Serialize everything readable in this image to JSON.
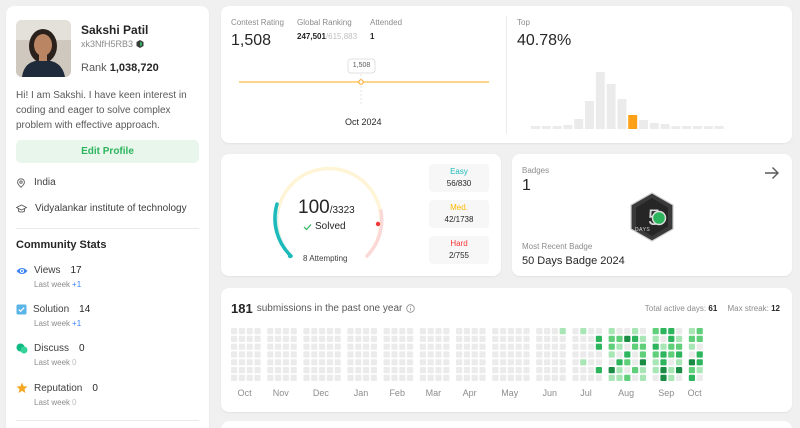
{
  "profile": {
    "name": "Sakshi Patil",
    "handle": "xk3NfH5RB3",
    "rank_label": "Rank",
    "rank_value": "1,038,720",
    "bio": "Hi! I am Sakshi. I have keen interest in coding and eager to solve complex problem with effective approach.",
    "edit_label": "Edit Profile",
    "location": "India",
    "school": "Vidyalankar institute of technology"
  },
  "community": {
    "title": "Community Stats",
    "stats": [
      {
        "label": "Views",
        "value": "17",
        "sub": "Last week",
        "delta": "+1",
        "color": "#3b82f6"
      },
      {
        "label": "Solution",
        "value": "14",
        "sub": "Last week",
        "delta": "+1",
        "color": "#3b9edf"
      },
      {
        "label": "Discuss",
        "value": "0",
        "sub": "Last week",
        "delta": "0",
        "color": "#10b981"
      },
      {
        "label": "Reputation",
        "value": "0",
        "sub": "Last week",
        "delta": "0",
        "color": "#f5a623"
      }
    ]
  },
  "contest": {
    "rating_label": "Contest Rating",
    "rating": "1,508",
    "global_label": "Global Ranking",
    "global_rank": "247,501",
    "global_total": "/615,883",
    "attended_label": "Attended",
    "attended": "1",
    "tooltip": "1,508",
    "date": "Oct 2024",
    "top_label": "Top",
    "top_value": "40.78%"
  },
  "problems": {
    "solved": "100",
    "total": "/3323",
    "solved_label": "Solved",
    "attempting": "8 Attempting",
    "easy_label": "Easy",
    "easy": "56/830",
    "med_label": "Med.",
    "med": "42/1738",
    "hard_label": "Hard",
    "hard": "2/755",
    "solved_fraction": 0.03
  },
  "badges": {
    "label": "Badges",
    "count": "1",
    "recent_label": "Most Recent Badge",
    "recent_name": "50 Days Badge 2024",
    "badge_days_text": "DAYS"
  },
  "submissions": {
    "count": "181",
    "text": "submissions in the past one year",
    "active_label": "Total active days:",
    "active_value": "61",
    "streak_label": "Max streak:",
    "streak_value": "12",
    "months": [
      "Oct",
      "Nov",
      "Dec",
      "Jan",
      "Feb",
      "Mar",
      "Apr",
      "May",
      "Jun",
      "Jul",
      "Aug",
      "Sep",
      "Oct"
    ]
  },
  "colors": {
    "accent_green": "#2db55d",
    "easy": "#1cbaba",
    "medium": "#ffb700",
    "hard": "#f63737",
    "rating_line": "#ffa116"
  }
}
